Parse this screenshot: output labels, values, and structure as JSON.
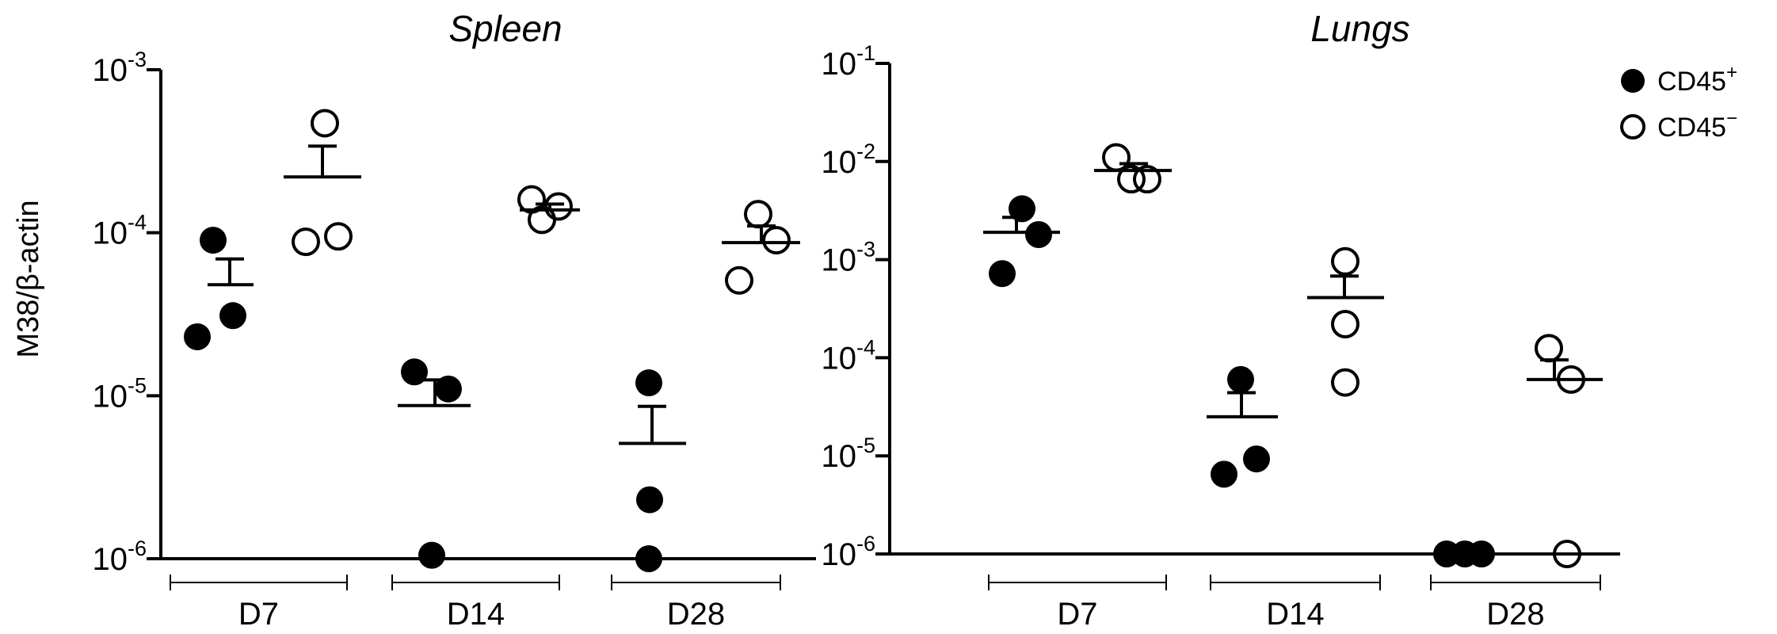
{
  "figure": {
    "ylabel": "M38/β-actin",
    "legend": [
      {
        "label": "CD45",
        "sup": "+",
        "marker": "filled"
      },
      {
        "label": "CD45",
        "sup": "−",
        "marker": "open"
      }
    ]
  },
  "chart_data": [
    {
      "type": "scatter",
      "title": "Spleen",
      "ylabel": "M38/β-actin",
      "yscale": "log",
      "ylim": [
        1e-06,
        0.001
      ],
      "yticks": [
        {
          "base": "10",
          "exp": "-3",
          "value": 0.001
        },
        {
          "base": "10",
          "exp": "-4",
          "value": 0.0001
        },
        {
          "base": "10",
          "exp": "-5",
          "value": 1e-05
        },
        {
          "base": "10",
          "exp": "-6",
          "value": 1e-06
        }
      ],
      "categories": [
        "D7",
        "D14",
        "D28"
      ],
      "series": [
        {
          "name": "CD45+",
          "marker": "filled",
          "groups": [
            {
              "category": "D7",
              "points": [
                9e-05,
                3.1e-05,
                2.3e-05
              ],
              "mean": 4.8e-05,
              "sem_upper": 6.9e-05
            },
            {
              "category": "D14",
              "points": [
                1.4e-05,
                1.1e-05,
                1.05e-06
              ],
              "mean": 8.7e-06,
              "sem_upper": 1.25e-05
            },
            {
              "category": "D28",
              "points": [
                1.2e-05,
                2.3e-06,
                1e-06
              ],
              "mean": 5.1e-06,
              "sem_upper": 8.6e-06
            }
          ]
        },
        {
          "name": "CD45−",
          "marker": "open",
          "groups": [
            {
              "category": "D7",
              "points": [
                0.00047,
                9.5e-05,
                8.8e-05
              ],
              "mean": 0.00022,
              "sem_upper": 0.00034
            },
            {
              "category": "D14",
              "points": [
                0.00016,
                0.000145,
                0.00012
              ],
              "mean": 0.000138,
              "sem_upper": 0.00015
            },
            {
              "category": "D28",
              "points": [
                0.00013,
                9e-05,
                5.1e-05
              ],
              "mean": 8.7e-05,
              "sem_upper": 0.00011
            }
          ]
        }
      ]
    },
    {
      "type": "scatter",
      "title": "Lungs",
      "ylabel": "",
      "yscale": "log",
      "ylim": [
        1e-06,
        0.1
      ],
      "yticks": [
        {
          "base": "10",
          "exp": "-1",
          "value": 0.1
        },
        {
          "base": "10",
          "exp": "-2",
          "value": 0.01
        },
        {
          "base": "10",
          "exp": "-3",
          "value": 0.001
        },
        {
          "base": "10",
          "exp": "-4",
          "value": 0.0001
        },
        {
          "base": "10",
          "exp": "-5",
          "value": 1e-05
        },
        {
          "base": "10",
          "exp": "-6",
          "value": 1e-06
        }
      ],
      "categories": [
        "D7",
        "D14",
        "D28"
      ],
      "series": [
        {
          "name": "CD45+",
          "marker": "filled",
          "groups": [
            {
              "category": "D7",
              "points": [
                0.0033,
                0.0018,
                0.00072
              ],
              "mean": 0.0019,
              "sem_upper": 0.0027
            },
            {
              "category": "D14",
              "points": [
                6e-05,
                9.3e-06,
                6.5e-06
              ],
              "mean": 2.5e-05,
              "sem_upper": 4.4e-05
            },
            {
              "category": "D28",
              "points": [
                1e-06,
                1e-06,
                1e-06
              ],
              "mean": 1e-06,
              "sem_upper": 1e-06
            }
          ]
        },
        {
          "name": "CD45−",
          "marker": "open",
          "groups": [
            {
              "category": "D7",
              "points": [
                0.011,
                0.0066,
                0.0066
              ],
              "mean": 0.0081,
              "sem_upper": 0.0095
            },
            {
              "category": "D14",
              "points": [
                0.00096,
                0.00022,
                5.6e-05
              ],
              "mean": 0.00041,
              "sem_upper": 0.00068
            },
            {
              "category": "D28",
              "points": [
                0.000125,
                6e-05,
                1e-06
              ],
              "mean": 6e-05,
              "sem_upper": 9.5e-05
            }
          ]
        }
      ]
    }
  ]
}
